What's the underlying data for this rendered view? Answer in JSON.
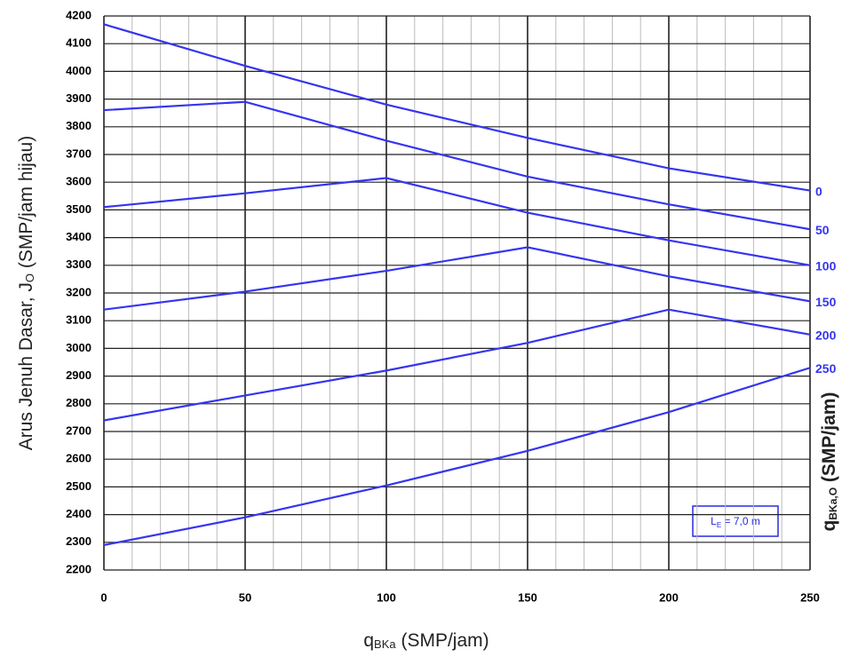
{
  "chart_data": {
    "type": "line",
    "x_label": [
      "q",
      "BKa",
      " (SMP/jam)"
    ],
    "y_label": [
      "Arus Jenuh Dasar, J",
      "O",
      " (SMP/jam hijau)"
    ],
    "y2_label": [
      "q",
      "BKa,O",
      " (SMP/jam)"
    ],
    "annotation": [
      "L",
      "E",
      " = 7,0 m"
    ],
    "x": [
      0,
      50,
      100,
      150,
      200,
      250
    ],
    "series": [
      {
        "name": "0",
        "color": "#3535f0",
        "values": [
          4170,
          4020,
          3880,
          3760,
          3650,
          3570
        ]
      },
      {
        "name": "50",
        "color": "#3535f0",
        "values": [
          3860,
          3890,
          3750,
          3620,
          3520,
          3430
        ]
      },
      {
        "name": "100",
        "color": "#3535f0",
        "values": [
          3510,
          3560,
          3615,
          3490,
          3390,
          3300
        ]
      },
      {
        "name": "150",
        "color": "#3535f0",
        "values": [
          3140,
          3205,
          3280,
          3365,
          3260,
          3170
        ]
      },
      {
        "name": "200",
        "color": "#3535f0",
        "values": [
          2740,
          2830,
          2920,
          3020,
          3140,
          3050
        ]
      },
      {
        "name": "250",
        "color": "#3535f0",
        "values": [
          2290,
          2390,
          2505,
          2630,
          2770,
          2930
        ]
      }
    ],
    "xlim": [
      0,
      250
    ],
    "xticks": [
      0,
      50,
      100,
      150,
      200,
      250
    ],
    "ylim": [
      2200,
      4200
    ],
    "yticks": [
      2200,
      2300,
      2400,
      2500,
      2600,
      2700,
      2800,
      2900,
      3000,
      3100,
      3200,
      3300,
      3400,
      3500,
      3600,
      3700,
      3800,
      3900,
      4000,
      4100,
      4200
    ],
    "grid": true
  }
}
